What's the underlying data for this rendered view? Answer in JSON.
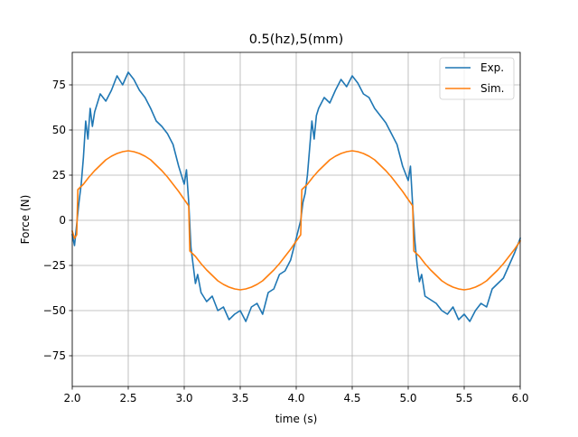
{
  "chart_data": {
    "type": "line",
    "title": "0.5(hz),5(mm)",
    "xlabel": "time (s)",
    "ylabel": "Force (N)",
    "xlim": [
      2.0,
      6.0
    ],
    "ylim": [
      -92,
      93
    ],
    "xticks": [
      2.0,
      2.5,
      3.0,
      3.5,
      4.0,
      4.5,
      5.0,
      5.5,
      6.0
    ],
    "xtick_labels": [
      "2.0",
      "2.5",
      "3.0",
      "3.5",
      "4.0",
      "4.5",
      "5.0",
      "5.5",
      "6.0"
    ],
    "yticks": [
      75,
      50,
      25,
      0,
      -25,
      -50,
      -75
    ],
    "ytick_labels": [
      "75",
      "50",
      "25",
      "0",
      "−25",
      "−50",
      "−75"
    ],
    "grid": true,
    "legend_position": "top-right",
    "series": [
      {
        "name": "Exp.",
        "color": "#1f77b4",
        "x": [
          2.0,
          2.02,
          2.04,
          2.06,
          2.08,
          2.1,
          2.12,
          2.14,
          2.16,
          2.18,
          2.2,
          2.25,
          2.3,
          2.35,
          2.4,
          2.45,
          2.5,
          2.55,
          2.6,
          2.65,
          2.7,
          2.75,
          2.8,
          2.85,
          2.9,
          2.95,
          3.0,
          3.02,
          3.04,
          3.06,
          3.08,
          3.1,
          3.12,
          3.15,
          3.2,
          3.25,
          3.3,
          3.35,
          3.4,
          3.45,
          3.5,
          3.55,
          3.6,
          3.65,
          3.7,
          3.75,
          3.8,
          3.85,
          3.9,
          3.95,
          4.0,
          4.02,
          4.04,
          4.06,
          4.08,
          4.1,
          4.12,
          4.14,
          4.16,
          4.18,
          4.2,
          4.25,
          4.3,
          4.35,
          4.4,
          4.45,
          4.5,
          4.55,
          4.6,
          4.65,
          4.7,
          4.75,
          4.8,
          4.85,
          4.9,
          4.95,
          5.0,
          5.02,
          5.04,
          5.06,
          5.08,
          5.1,
          5.12,
          5.15,
          5.2,
          5.25,
          5.3,
          5.35,
          5.4,
          5.45,
          5.5,
          5.55,
          5.6,
          5.65,
          5.7,
          5.75,
          5.8,
          5.85,
          5.9,
          5.95,
          6.0
        ],
        "y": [
          -8,
          -14,
          -2,
          10,
          20,
          35,
          55,
          45,
          62,
          52,
          60,
          70,
          66,
          72,
          80,
          75,
          82,
          78,
          72,
          68,
          62,
          55,
          52,
          48,
          42,
          30,
          20,
          28,
          10,
          -15,
          -25,
          -35,
          -30,
          -40,
          -45,
          -42,
          -50,
          -48,
          -55,
          -52,
          -50,
          -56,
          -48,
          -46,
          -52,
          -40,
          -38,
          -30,
          -28,
          -22,
          -10,
          -5,
          0,
          10,
          15,
          25,
          40,
          55,
          45,
          58,
          62,
          68,
          65,
          72,
          78,
          74,
          80,
          76,
          70,
          68,
          62,
          58,
          54,
          48,
          42,
          30,
          22,
          30,
          8,
          -12,
          -25,
          -34,
          -30,
          -42,
          -44,
          -46,
          -50,
          -52,
          -48,
          -55,
          -52,
          -56,
          -50,
          -46,
          -48,
          -38,
          -35,
          -32,
          -25,
          -18,
          -10
        ]
      },
      {
        "name": "Sim.",
        "color": "#ff7f0e",
        "x": [
          2.0,
          2.02,
          2.04,
          2.05,
          2.1,
          2.15,
          2.2,
          2.25,
          2.3,
          2.35,
          2.4,
          2.45,
          2.5,
          2.55,
          2.6,
          2.65,
          2.7,
          2.75,
          2.8,
          2.85,
          2.9,
          2.95,
          3.0,
          3.04,
          3.05,
          3.1,
          3.15,
          3.2,
          3.25,
          3.3,
          3.35,
          3.4,
          3.45,
          3.5,
          3.55,
          3.6,
          3.65,
          3.7,
          3.75,
          3.8,
          3.85,
          3.9,
          3.95,
          4.0,
          4.04,
          4.05,
          4.1,
          4.15,
          4.2,
          4.25,
          4.3,
          4.35,
          4.4,
          4.45,
          4.5,
          4.55,
          4.6,
          4.65,
          4.7,
          4.75,
          4.8,
          4.85,
          4.9,
          4.95,
          5.0,
          5.04,
          5.05,
          5.1,
          5.15,
          5.2,
          5.25,
          5.3,
          5.35,
          5.4,
          5.45,
          5.5,
          5.55,
          5.6,
          5.65,
          5.7,
          5.75,
          5.8,
          5.85,
          5.9,
          5.95,
          6.0
        ],
        "y": [
          -6,
          -10,
          -8,
          17,
          20,
          24,
          27.5,
          30.5,
          33.5,
          35.5,
          37,
          38,
          38.5,
          38,
          37,
          35.5,
          33.5,
          30.5,
          27.5,
          24,
          20,
          16,
          11.5,
          8,
          -17,
          -20,
          -24,
          -27.5,
          -30.5,
          -33.5,
          -35.5,
          -37,
          -38,
          -38.5,
          -38,
          -37,
          -35.5,
          -33.5,
          -30.5,
          -27.5,
          -24,
          -20,
          -16,
          -11.5,
          -8,
          17,
          20,
          24,
          27.5,
          30.5,
          33.5,
          35.5,
          37,
          38,
          38.5,
          38,
          37,
          35.5,
          33.5,
          30.5,
          27.5,
          24,
          20,
          16,
          11.5,
          8,
          -17,
          -20,
          -24,
          -27.5,
          -30.5,
          -33.5,
          -35.5,
          -37,
          -38,
          -38.5,
          -38,
          -37,
          -35.5,
          -33.5,
          -30.5,
          -27.5,
          -24,
          -20,
          -16,
          -11.5
        ]
      }
    ]
  }
}
